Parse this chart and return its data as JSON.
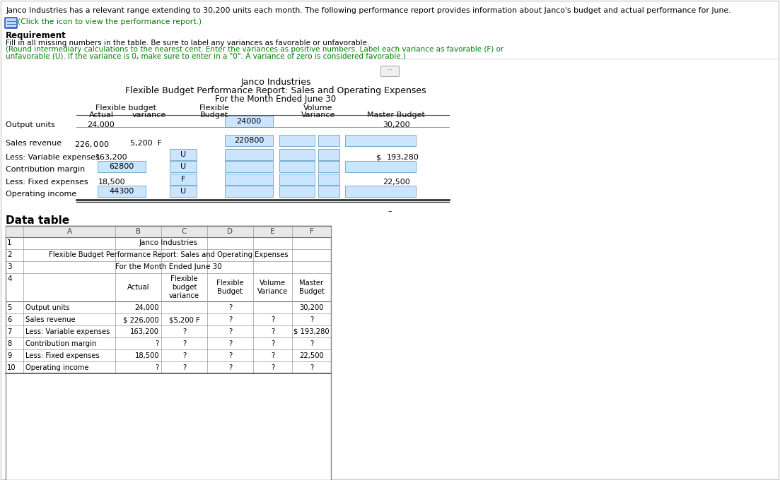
{
  "bg_color": "#ffffff",
  "header_line1": "Janco Industries has a relevant range extending to 30,200 units each month. The following performance report provides information about Janco's budget and actual performance for June.",
  "header_line2": "(Click the icon to view the performance report.)",
  "req_title": "Requirement",
  "req_line1": "Fill in all missing numbers in the table. Be sure to label any variances as favorable or unfavorable.",
  "req_line2": "(Round intermediary calculations to the nearest cent. Enter the variances as positive numbers. Label each variance as favorable (F) or",
  "req_line3": "unfavorable (U). If the variance is 0, make sure to enter in a \"0\". A variance of zero is considered favorable.)",
  "title1": "Janco Industries",
  "title2": "Flexible Budget Performance Report: Sales and Operating Expenses",
  "title3": "For the Month Ended June 30",
  "col_hdr1_flex": "Flexible budget",
  "col_hdr1_flex2": "Flexible",
  "col_hdr1_vol": "Volume",
  "col_hdr2_actual": "Actual",
  "col_hdr2_var": "variance",
  "col_hdr2_budget": "Budget",
  "col_hdr2_variance": "Variance",
  "col_hdr2_master": "Master Budget",
  "green": "#008000",
  "gray": "#555555",
  "input_fill": "#cce5ff",
  "input_border": "#7aadcc",
  "black": "#000000"
}
